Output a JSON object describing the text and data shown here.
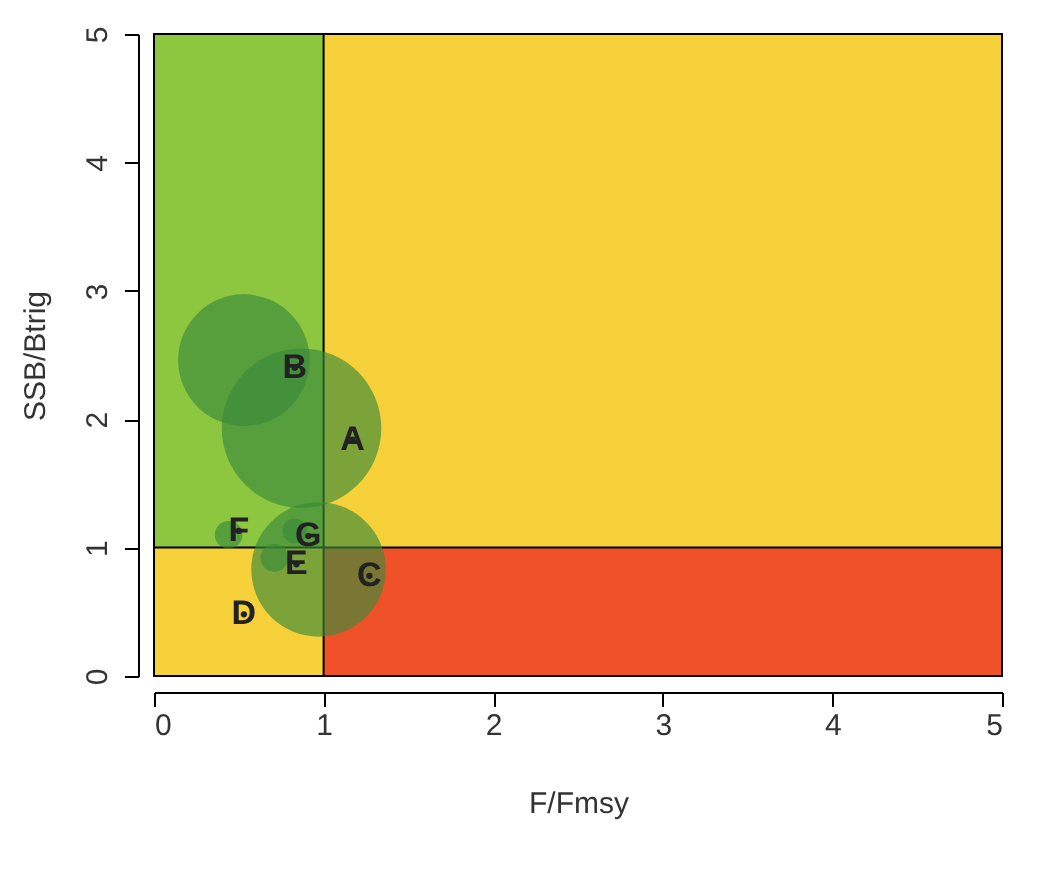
{
  "chart_data": {
    "type": "bubble",
    "xlabel": "F/Fmsy",
    "ylabel": "SSB/Btrig",
    "series": [
      {
        "color": "#3a8a3a",
        "x": [
          0.87,
          0.53,
          0.97,
          0.71,
          0.44,
          0.83
        ],
        "values": [
          1.93,
          2.46,
          0.83,
          0.92,
          1.1,
          1.13
        ],
        "sizes": [
          1,
          0.68,
          0.71,
          0.03,
          0.03,
          0.024
        ]
      },
      {
        "type": "scatter",
        "marker": "circle",
        "color": "#222222",
        "x": [
          1.17,
          0.83,
          1.27,
          0.53,
          0.84,
          0.5,
          0.91
        ],
        "values": [
          1.84,
          2.4,
          0.78,
          0.48,
          0.87,
          1.13,
          1.09
        ],
        "value_labels": [
          "A",
          "B",
          "C",
          "D",
          "E",
          "F",
          "G"
        ]
      }
    ],
    "xlim": [
      0,
      5
    ],
    "ylim": [
      0,
      5
    ],
    "xticks": [
      0,
      1,
      2,
      3,
      4,
      5
    ],
    "yticks": [
      0,
      1,
      2,
      3,
      4,
      5
    ],
    "grid": false,
    "bands": [
      {
        "axis": "x",
        "from": 0,
        "to": 1,
        "color": "#8dc63f"
      },
      {
        "axis": "y",
        "from": 0,
        "to": 1,
        "color": "#ef5228"
      }
    ]
  }
}
